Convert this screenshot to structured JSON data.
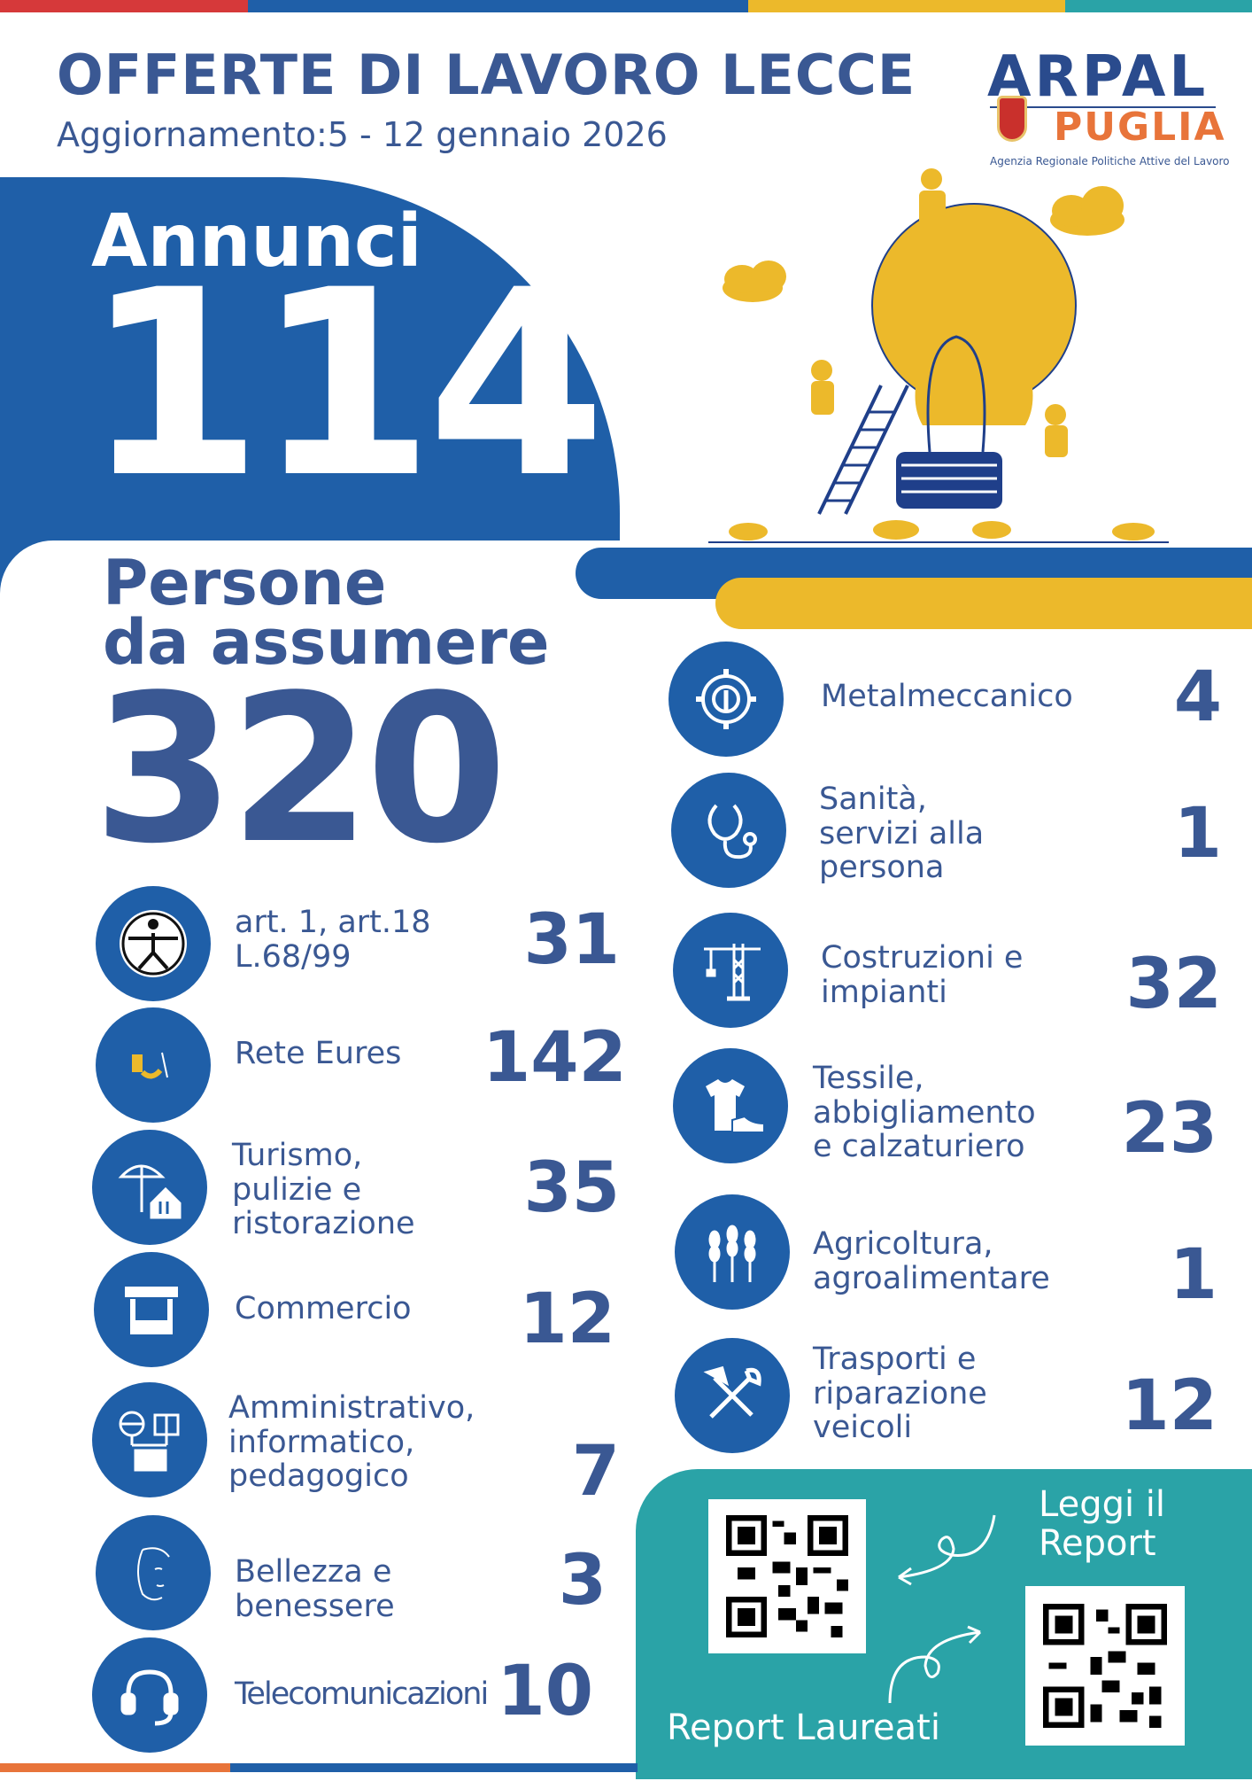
{
  "header": {
    "title": "OFFERTE DI LAVORO LECCE",
    "subtitle": "Aggiornamento:5 - 12 gennaio 2026"
  },
  "logo": {
    "arpal": "ARPAL",
    "puglia": "PUGLIA",
    "agency": "Agenzia Regionale Politiche Attive del Lavoro"
  },
  "stats": {
    "annunci_label": "Annunci",
    "annunci_value": "114",
    "persone_label_line1": "Persone",
    "persone_label_line2": "da assumere",
    "persone_value": "320"
  },
  "left_categories": [
    {
      "label": "art. 1, art.18\nL.68/99",
      "value": "31",
      "icon": "accessibility-icon"
    },
    {
      "label": "Rete Eures",
      "value": "142",
      "icon": "eures-logo-icon"
    },
    {
      "label": "Turismo,\npulizie e\nristorazione",
      "value": "35",
      "icon": "beach-house-icon"
    },
    {
      "label": "Commercio",
      "value": "12",
      "icon": "market-stall-icon"
    },
    {
      "label": "Amministrativo,\ninformatico,\npedagogico",
      "value": "7",
      "icon": "office-network-icon"
    },
    {
      "label": "Bellezza e\nbenessere",
      "value": "3",
      "icon": "face-icon"
    },
    {
      "label": "Telecomunicazioni",
      "value": "10",
      "icon": "headset-icon"
    }
  ],
  "right_categories": [
    {
      "label": "Metalmeccanico",
      "value": "4",
      "icon": "gear-wrench-icon"
    },
    {
      "label": "Sanità,\nservizi alla\npersona",
      "value": "1",
      "icon": "stethoscope-icon"
    },
    {
      "label": "Costruzioni e\nimpianti",
      "value": "32",
      "icon": "crane-icon"
    },
    {
      "label": "Tessile,\nabbigliamento\ne calzaturiero",
      "value": "23",
      "icon": "shirt-shoe-icon"
    },
    {
      "label": "Agricoltura,\nagroalimentare",
      "value": "1",
      "icon": "wheat-icon"
    },
    {
      "label": "Trasporti e\nriparazione\nveicoli",
      "value": "12",
      "icon": "tools-icon"
    }
  ],
  "reports": {
    "leggi": "Leggi il\nReport",
    "laureati": "Report Laureati"
  },
  "colors": {
    "blue": "#1f5fa8",
    "navy_text": "#3a5893",
    "yellow": "#ecb92b",
    "teal": "#2aa3a7",
    "orange": "#e8743a"
  }
}
